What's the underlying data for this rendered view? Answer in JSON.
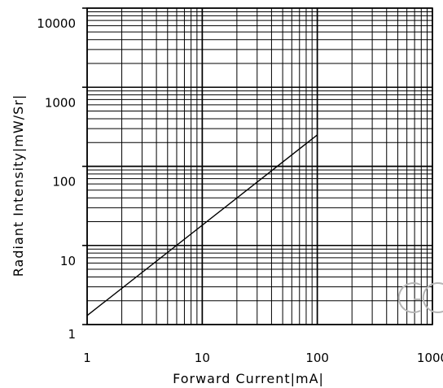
{
  "chart_data": {
    "type": "line",
    "title": "",
    "xlabel": "Forward Current|mA|",
    "ylabel": "Radiant Intensity|mW/Sr|",
    "x_scale": "log",
    "y_scale": "log",
    "xlim": [
      1,
      1000
    ],
    "ylim": [
      1,
      10000
    ],
    "x_ticks": [
      {
        "value": 1,
        "label": "1"
      },
      {
        "value": 10,
        "label": "10"
      },
      {
        "value": 100,
        "label": "100"
      },
      {
        "value": 1000,
        "label": "1000"
      }
    ],
    "y_ticks": [
      {
        "value": 1,
        "label": "1"
      },
      {
        "value": 10,
        "label": "10"
      },
      {
        "value": 100,
        "label": "100"
      },
      {
        "value": 1000,
        "label": "1000"
      },
      {
        "value": 10000,
        "label": "10000"
      }
    ],
    "grid": true,
    "legend": "none",
    "series": [
      {
        "x": [
          1,
          100
        ],
        "y": [
          1.3,
          250
        ]
      }
    ]
  },
  "colors": {
    "grid": "#000000",
    "line": "#000000",
    "watermark": "#b5b5b5"
  }
}
